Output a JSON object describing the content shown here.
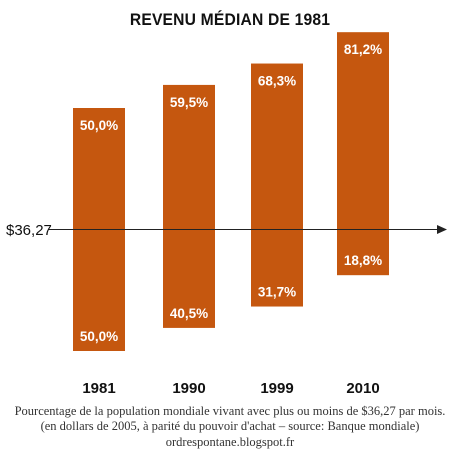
{
  "chart_data": {
    "type": "bar",
    "title": "REVENU MÉDIAN DE 1981",
    "threshold_label": "$36,27",
    "categories": [
      "1981",
      "1990",
      "1999",
      "2010"
    ],
    "above_labels": [
      "50,0%",
      "59,5%",
      "68,3%",
      "81,2%"
    ],
    "below_labels": [
      "50,0%",
      "40,5%",
      "31,7%",
      "18,8%"
    ],
    "above": [
      50.0,
      59.5,
      68.3,
      81.2
    ],
    "below": [
      50.0,
      40.5,
      31.7,
      18.8
    ],
    "bar_color": "#c5570f",
    "label_color": "#ffffff"
  },
  "caption": {
    "line1": "Pourcentage de la population mondiale vivant avec plus ou moins de $36,27 par mois.",
    "line2": "(en dollars de 2005, à parité du pouvoir d'achat – source: Banque mondiale)",
    "line3": "ordrespontane.blogspot.fr"
  }
}
